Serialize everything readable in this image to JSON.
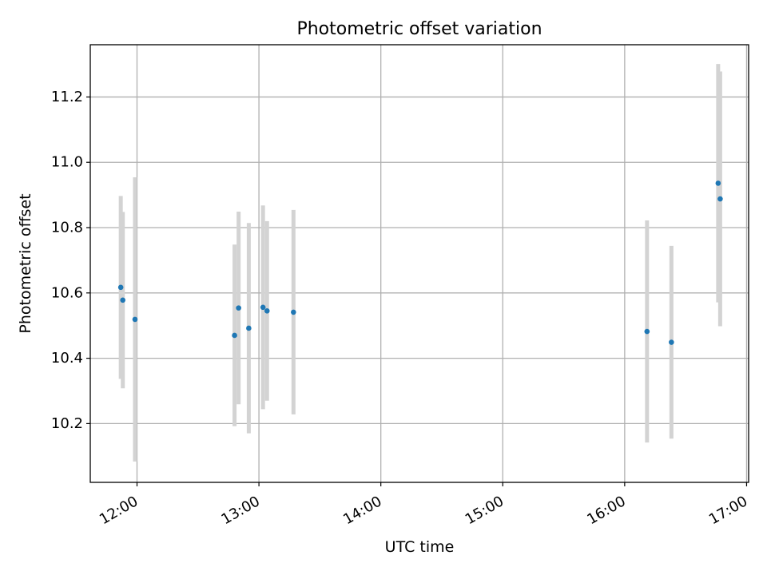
{
  "chart_data": {
    "type": "scatter",
    "title": "Photometric offset variation",
    "xlabel": "UTC time",
    "ylabel": "Photometric offset",
    "x_ticks": [
      "12:00",
      "13:00",
      "14:00",
      "15:00",
      "16:00",
      "17:00"
    ],
    "y_ticks": [
      "10.2",
      "10.4",
      "10.6",
      "10.8",
      "11.0",
      "11.2"
    ],
    "xlim": [
      "11:37",
      "17:01"
    ],
    "ylim": [
      10.02,
      11.36
    ],
    "grid": true,
    "colors": {
      "point": "#1f77b4",
      "errorbar": "#d3d3d3",
      "grid": "#b0b0b0"
    },
    "points": [
      {
        "x": "11:52",
        "y": 10.617,
        "yerr": 0.28
      },
      {
        "x": "11:53",
        "y": 10.578,
        "yerr": 0.27
      },
      {
        "x": "11:59",
        "y": 10.519,
        "yerr": 0.435
      },
      {
        "x": "12:48",
        "y": 10.47,
        "yerr": 0.278
      },
      {
        "x": "12:50",
        "y": 10.554,
        "yerr": 0.295
      },
      {
        "x": "12:55",
        "y": 10.492,
        "yerr": 0.322
      },
      {
        "x": "13:02",
        "y": 10.556,
        "yerr": 0.312
      },
      {
        "x": "13:04",
        "y": 10.545,
        "yerr": 0.275
      },
      {
        "x": "13:17",
        "y": 10.541,
        "yerr": 0.313
      },
      {
        "x": "16:11",
        "y": 10.482,
        "yerr": 0.34
      },
      {
        "x": "16:23",
        "y": 10.449,
        "yerr": 0.295
      },
      {
        "x": "16:46",
        "y": 10.936,
        "yerr": 0.365
      },
      {
        "x": "16:47",
        "y": 10.888,
        "yerr": 0.39
      }
    ]
  }
}
